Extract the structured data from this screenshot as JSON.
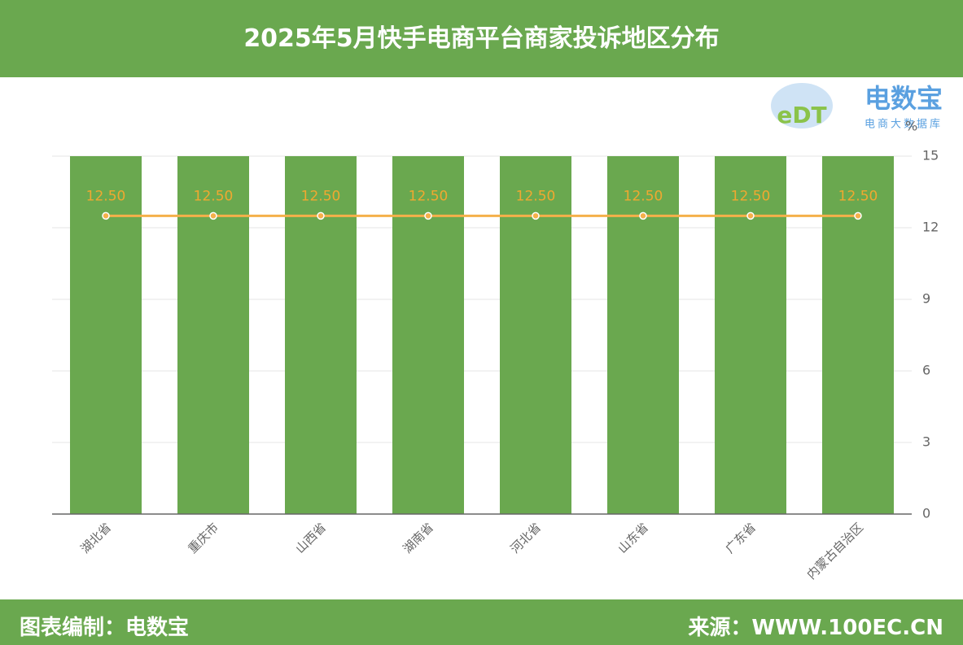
{
  "header": {
    "title": "2025年5月快手电商平台商家投诉地区分布"
  },
  "logo": {
    "mark": "eDT",
    "text": "电数宝",
    "subtext": "电商大数据库"
  },
  "chart_data": {
    "type": "bar",
    "categories": [
      "湖北省",
      "重庆市",
      "山西省",
      "湖南省",
      "河北省",
      "山东省",
      "广东省",
      "内蒙古自治区"
    ],
    "series": [
      {
        "type": "bar",
        "color": "#6aa84f",
        "values": [
          15,
          15,
          15,
          15,
          15,
          15,
          15,
          15
        ]
      },
      {
        "type": "line",
        "color": "#f5b04a",
        "values": [
          12.5,
          12.5,
          12.5,
          12.5,
          12.5,
          12.5,
          12.5,
          12.5
        ],
        "value_labels": [
          "12.50",
          "12.50",
          "12.50",
          "12.50",
          "12.50",
          "12.50",
          "12.50",
          "12.50"
        ]
      }
    ],
    "y_label": "%",
    "ylim": [
      0,
      15
    ],
    "yticks": [
      0,
      3,
      6,
      9,
      12,
      15
    ],
    "grid": true
  },
  "footer": {
    "left": "图表编制：电数宝",
    "right": "来源：WWW.100EC.CN"
  }
}
